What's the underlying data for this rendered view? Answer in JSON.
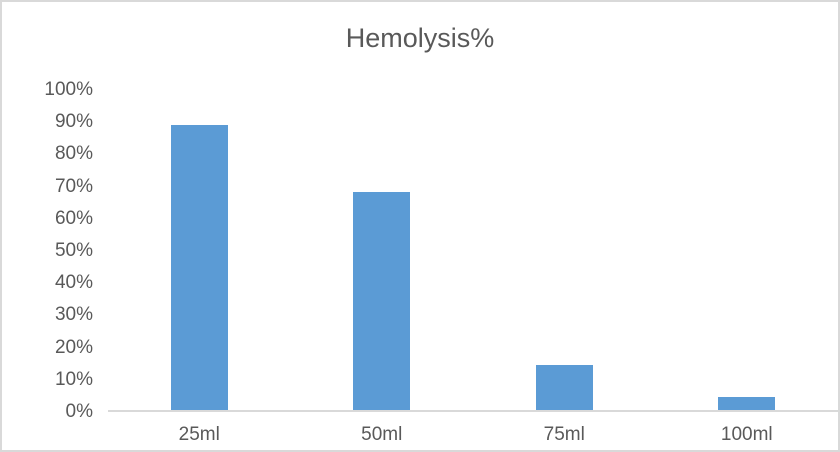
{
  "chart_data": {
    "type": "bar",
    "title": "Hemolysis%",
    "categories": [
      "25ml",
      "50ml",
      "75ml",
      "100ml"
    ],
    "values": [
      89,
      68,
      14,
      4
    ],
    "value_unit": "%",
    "xlabel": "",
    "ylabel": "",
    "ylim": [
      0,
      100
    ],
    "ytick_step": 10,
    "ytick_labels": [
      "0%",
      "10%",
      "20%",
      "30%",
      "40%",
      "50%",
      "60%",
      "70%",
      "80%",
      "90%",
      "100%"
    ],
    "grid": false,
    "legend": false,
    "colors": {
      "bar": "#5B9BD5",
      "axis_line": "#D9D9D9",
      "text": "#595959",
      "border": "#D9D9D9",
      "background": "#FFFFFF"
    }
  }
}
